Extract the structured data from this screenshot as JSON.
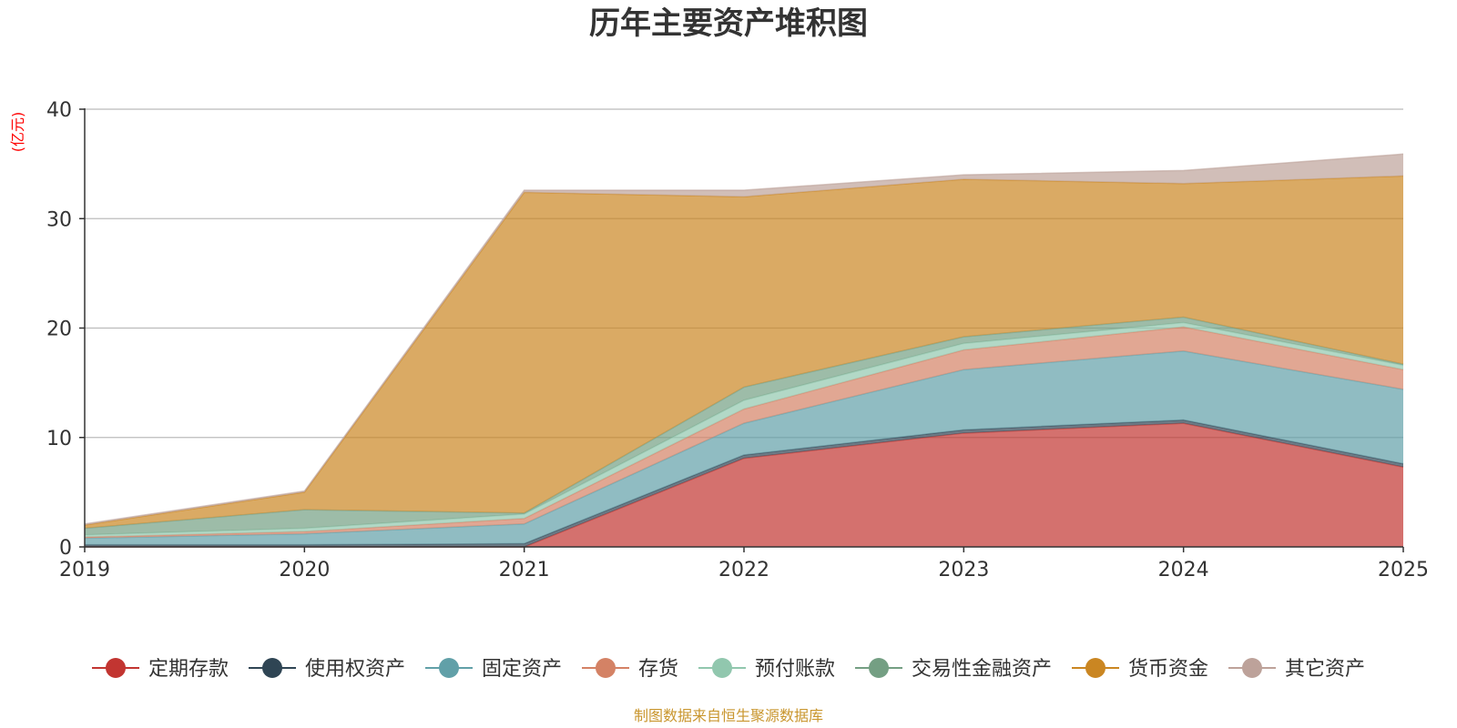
{
  "chart_data": {
    "type": "area",
    "stacked": true,
    "title": "历年主要资产堆积图",
    "ylabel": "(亿元)",
    "xlabel": "",
    "x": [
      "2019",
      "2020",
      "2021",
      "2022",
      "2023",
      "2024",
      "2025"
    ],
    "ylim": [
      0,
      40
    ],
    "yticks": [
      0,
      10,
      20,
      30,
      40
    ],
    "grid": true,
    "legend_position": "bottom",
    "series": [
      {
        "name": "定期存款",
        "color": "#c23531",
        "values": [
          0,
          0,
          0,
          8.1,
          10.4,
          11.3,
          7.3
        ]
      },
      {
        "name": "使用权资产",
        "color": "#2f4554",
        "values": [
          0.2,
          0.2,
          0.3,
          0.3,
          0.3,
          0.3,
          0.3
        ]
      },
      {
        "name": "固定资产",
        "color": "#61a0a8",
        "values": [
          0.6,
          1.0,
          1.8,
          2.9,
          5.5,
          6.3,
          6.8
        ]
      },
      {
        "name": "存货",
        "color": "#d48265",
        "values": [
          0.1,
          0.2,
          0.5,
          1.3,
          1.8,
          2.2,
          1.8
        ]
      },
      {
        "name": "预付账款",
        "color": "#91c7ae",
        "values": [
          0.2,
          0.3,
          0.4,
          0.8,
          0.6,
          0.4,
          0.4
        ]
      },
      {
        "name": "交易性金融资产",
        "color": "#749f83",
        "values": [
          0.6,
          1.7,
          0.1,
          1.2,
          0.6,
          0.5,
          0.1
        ]
      },
      {
        "name": "货币资金",
        "color": "#ca8622",
        "values": [
          0.3,
          1.6,
          29.3,
          17.4,
          14.4,
          12.2,
          17.2
        ]
      },
      {
        "name": "其它资产",
        "color": "#bda29a",
        "values": [
          0.1,
          0.1,
          0.2,
          0.6,
          0.4,
          1.2,
          2.0
        ]
      }
    ]
  },
  "source_text": "制图数据来自恒生聚源数据库",
  "colors": {
    "title": "#333333",
    "ylabel": "#ff0000",
    "source": "#c9962e",
    "grid": "#bbbbbb",
    "axis": "#333333"
  }
}
